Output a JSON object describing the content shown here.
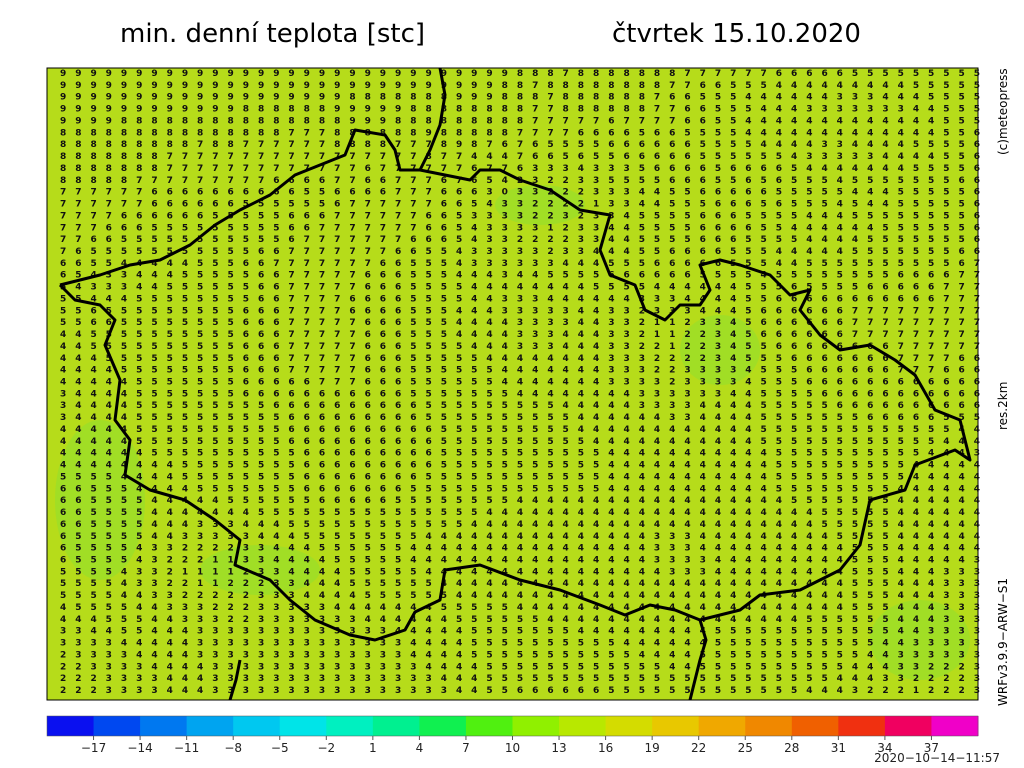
{
  "title": "min. denní teplota [stc]",
  "date": "čtvrtek 15.10.2020",
  "credit": "(c)meteopress",
  "resolution": "res.2km",
  "model": "WRFv3.9.9−ARW−S1",
  "timestamp": "2020−10−14−11:57",
  "grid": {
    "rows": [
      "9999999999999999999999999999998887888888877777766666555555555",
      "9999999999999999999999999999988788888888776655544444444455555",
      "9999999999999999999888888899988878888887665554444443334445555",
      "9999999999998888889999988888888778888887766555444333333344555",
      "9999888888888888888999888888888777776777766554444444444444555",
      "8888888888888887778888889888887777666656655554444444444444556",
      "8888888887887777778888777898767655556666665555444433444455556",
      "8888888777777777777777778774447665655666665555554333334444556",
      "8888888777777777777767777776776333433356666566665444444455556",
      "8888877777777766667766777676542322335555666556565554555555566",
      "7777776666666666556666777666303322233344556666655555444555556",
      "7777776666665555556777777665433222213344555666565554544555556",
      "7777666666555556667777776653333223233455556665555444555555556",
      "7776665555555556677777776654333312334455556666554444445555556",
      "7766555555555556777777766654332222334455556665555444455555556",
      "7655555555555667777777665543333323344455666655544444555555566",
      "6655444445556677777776655543333334445556666655544555555555567",
      "6543344455555667777766655544434455556666665555455555555666677",
      "5433344555555667777766655554444444455554444445556555566666777",
      "5544455555555667777666655554433344444433344445566666666666777",
      "5565555555556667777666655544433333443323334445666666777777777",
      "5566555555556667777766655544443333443321123345666666777777777",
      "4455555555556667777766655544443334443321122345666666777777777",
      "4455555555556667777766655554443334443322122345566666666777777",
      "4445555555556667777766655555444444443332222345556666666777766",
      "4444555555556667777766655555544444443332233334555666666777666",
      "4444455555556666677766655555544444443333233334555666666666666",
      "3444455555556666666666655555554444444433333344555566666666666",
      "3444455555555566666666665555555554444433334444555556666666666",
      "3444455555555556666666665555555555444444334444555555566666555",
      "4444455555555556666666666555555555444444444444555555555555544",
      "4444455555555556666666666555555555544444444444555555555555444",
      "4444445555555555666666666555555555554444444444455555555554443",
      "4444444455555555666666666555555555554444444444455555555544444",
      "5555444455555555666666665555555555554444444444455555555544444",
      "6655544445555555666666655555555555554444444444455555555444444",
      "6655554444455555566666555555554444444444444444445555555444444",
      "6655554444444555555555555555444444444444444444444455555444444",
      "6655554443334445555555555554444444444444444444444455555444444",
      "6555554433333444555555554444444444444443334444444445555444444",
      "6555543322223344455555544444444444444443334444444444555444444",
      "6555543222113344445555544444444444444443333444444444555444443",
      "5555433211112334444555554444444444444444333444444444555444333",
      "5555433221122233444555555444444444444444444444444444555444333",
      "5555443322222333444455555544444444444444444444444444555444333",
      "4555544333222333334444444555554444444444444444444444555444333",
      "4445554433322333333344444455555544444444444444444555555444333",
      "3344554443333333333333444445555555444444444555555555555443333",
      "3333444443333333333333344445555555555444444555555555554433333",
      "2333344443333333333333344445555555555544445555555555544333333",
      "2233334444333333333333334444555555555555445555555555444332223",
      "2223333444333333333333333444555555555555555555555554443322223",
      "2223333444333333333333333344556666665555555555555444322212223"
    ]
  },
  "colorbar": {
    "range": [
      -20,
      40
    ],
    "colors": [
      "#0a10f0",
      "#0048f0",
      "#0078f0",
      "#00a4f0",
      "#00c8f0",
      "#00e4e8",
      "#00f0c0",
      "#00f090",
      "#10f050",
      "#50f010",
      "#90f000",
      "#b8e800",
      "#d4dc00",
      "#e8c800",
      "#f0a800",
      "#f08800",
      "#f06000",
      "#f03010",
      "#f00060",
      "#f000c8"
    ],
    "ticks": [
      {
        "value": -17,
        "label": "−17"
      },
      {
        "value": -14,
        "label": "−14"
      },
      {
        "value": -11,
        "label": "−11"
      },
      {
        "value": -8,
        "label": "−8"
      },
      {
        "value": -5,
        "label": "−5"
      },
      {
        "value": -2,
        "label": "−2"
      },
      1,
      4,
      7,
      10,
      13,
      16,
      19,
      22,
      25,
      28,
      31,
      34,
      37
    ]
  }
}
